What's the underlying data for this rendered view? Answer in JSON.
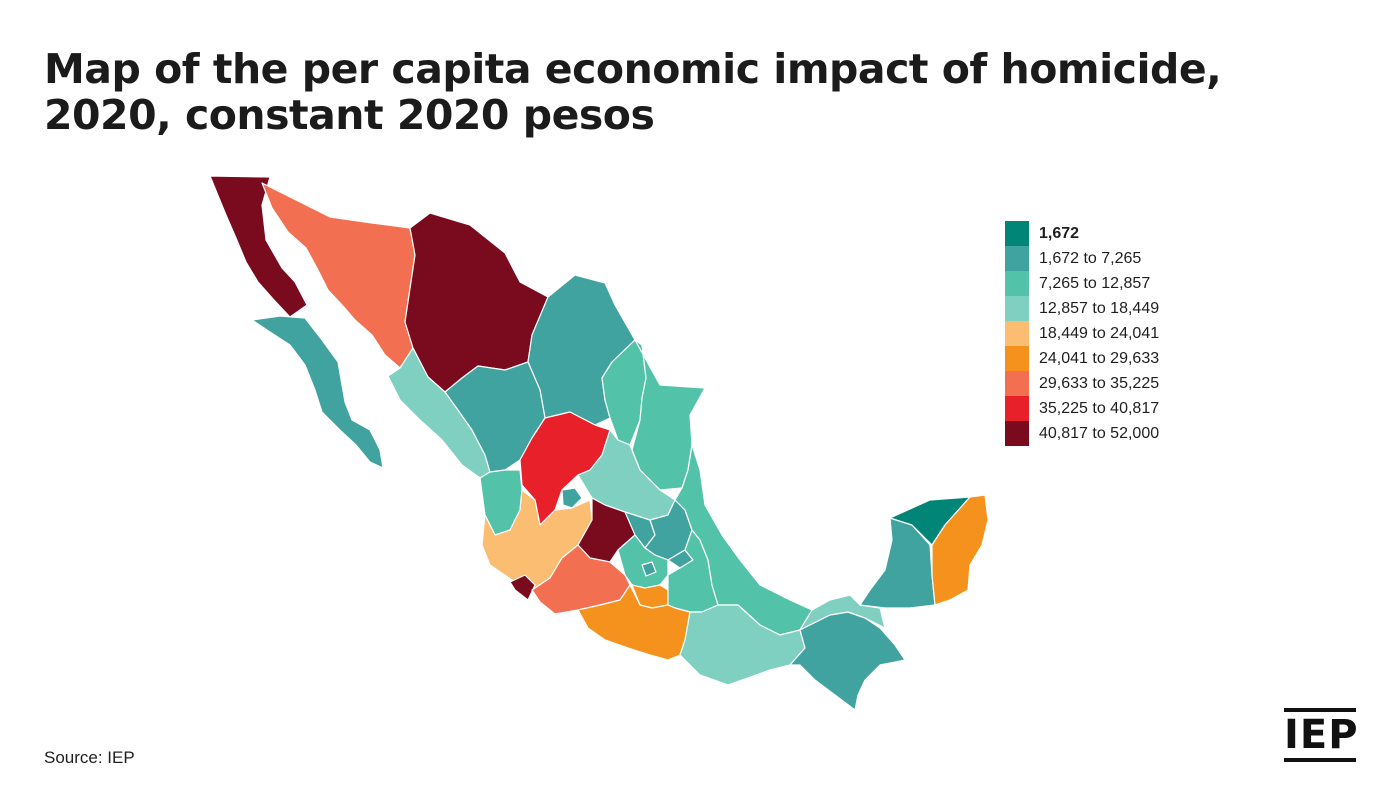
{
  "title": "Map of the per capita economic impact of homicide, 2020, constant 2020 pesos",
  "legend": [
    {
      "label": "1,672",
      "color": "#008577"
    },
    {
      "label": "1,672 to 7,265",
      "color": "#40a39f"
    },
    {
      "label": "7,265 to 12,857",
      "color": "#52c2a8"
    },
    {
      "label": "12,857 to 18,449",
      "color": "#7fd0c0"
    },
    {
      "label": "18,449 to 24,041",
      "color": "#fbbd71"
    },
    {
      "label": "24,041 to 29,633",
      "color": "#f5921e"
    },
    {
      "label": "29,633 to 35,225",
      "color": "#f26f52"
    },
    {
      "label": "35,225 to 40,817",
      "color": "#e8202a"
    },
    {
      "label": "40,817 to 52,000",
      "color": "#7a0a1e"
    }
  ],
  "regions": [
    {
      "name": "Baja California",
      "class": 8
    },
    {
      "name": "Sonora",
      "class": 6
    },
    {
      "name": "Chihuahua",
      "class": 8
    },
    {
      "name": "Baja California Sur",
      "class": 1
    },
    {
      "name": "Coahuila",
      "class": 1
    },
    {
      "name": "Nuevo León",
      "class": 2
    },
    {
      "name": "Tamaulipas",
      "class": 2
    },
    {
      "name": "Sinaloa",
      "class": 3
    },
    {
      "name": "Durango",
      "class": 1
    },
    {
      "name": "Zacatecas",
      "class": 7
    },
    {
      "name": "San Luis Potosí",
      "class": 3
    },
    {
      "name": "Nayarit",
      "class": 2
    },
    {
      "name": "Aguascalientes",
      "class": 1
    },
    {
      "name": "Jalisco",
      "class": 4
    },
    {
      "name": "Colima",
      "class": 8
    },
    {
      "name": "Guanajuato",
      "class": 8
    },
    {
      "name": "Querétaro",
      "class": 1
    },
    {
      "name": "Hidalgo",
      "class": 1
    },
    {
      "name": "Michoacán",
      "class": 6
    },
    {
      "name": "Estado de México",
      "class": 2
    },
    {
      "name": "Ciudad de México",
      "class": 1
    },
    {
      "name": "Morelos",
      "class": 5
    },
    {
      "name": "Tlaxcala",
      "class": 1
    },
    {
      "name": "Puebla",
      "class": 2
    },
    {
      "name": "Veracruz",
      "class": 2
    },
    {
      "name": "Guerrero",
      "class": 5
    },
    {
      "name": "Oaxaca",
      "class": 3
    },
    {
      "name": "Chiapas",
      "class": 1
    },
    {
      "name": "Tabasco",
      "class": 3
    },
    {
      "name": "Campeche",
      "class": 1
    },
    {
      "name": "Yucatán",
      "class": 0
    },
    {
      "name": "Quintana Roo",
      "class": 5
    }
  ],
  "source": "Source: IEP",
  "logo_text": "IEP"
}
